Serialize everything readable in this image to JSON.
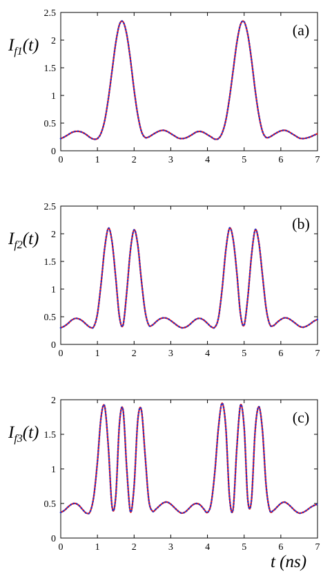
{
  "chart_data": [
    {
      "type": "line",
      "y_label": {
        "main": "I",
        "sub": "f1",
        "rest": "(t)"
      },
      "annotation": "(a)",
      "x": [
        0,
        0.1,
        0.2,
        0.3,
        0.4,
        0.5,
        0.6,
        0.7,
        0.8,
        0.9,
        1,
        1.1,
        1.2,
        1.3,
        1.4,
        1.5,
        1.6,
        1.7,
        1.8,
        1.9,
        2,
        2.1,
        2.2,
        2.3,
        2.4,
        2.5,
        2.6,
        2.7,
        2.8,
        2.9,
        3,
        3.1,
        3.2,
        3.3,
        3.4,
        3.5,
        3.6,
        3.7,
        3.8,
        3.9,
        4,
        4.1,
        4.2,
        4.3,
        4.4,
        4.5,
        4.6,
        4.7,
        4.8,
        4.9,
        5,
        5.1,
        5.2,
        5.3,
        5.4,
        5.5,
        5.6,
        5.7,
        5.8,
        5.9,
        6,
        6.1,
        6.2,
        6.3,
        6.4,
        6.5,
        6.6,
        6.7,
        6.8,
        6.9,
        7
      ],
      "xlim": [
        0,
        7
      ],
      "xticks": [
        0,
        1,
        2,
        3,
        4,
        5,
        6,
        7
      ],
      "ylim": [
        0,
        2.5
      ],
      "yticks": [
        0,
        0.5,
        1,
        1.5,
        2,
        2.5
      ],
      "series": [
        {
          "color": "#e4141b",
          "style": "solid",
          "values": [
            0.22,
            0.25,
            0.29,
            0.33,
            0.35,
            0.35,
            0.33,
            0.29,
            0.24,
            0.21,
            0.22,
            0.32,
            0.55,
            0.95,
            1.45,
            1.95,
            2.28,
            2.33,
            2.1,
            1.65,
            1.1,
            0.65,
            0.35,
            0.24,
            0.25,
            0.29,
            0.33,
            0.36,
            0.37,
            0.35,
            0.31,
            0.27,
            0.23,
            0.22,
            0.23,
            0.26,
            0.3,
            0.34,
            0.35,
            0.33,
            0.29,
            0.25,
            0.21,
            0.22,
            0.32,
            0.55,
            0.95,
            1.45,
            1.95,
            2.28,
            2.33,
            2.1,
            1.65,
            1.1,
            0.65,
            0.35,
            0.24,
            0.25,
            0.29,
            0.33,
            0.36,
            0.37,
            0.35,
            0.31,
            0.27,
            0.23,
            0.22,
            0.23,
            0.25,
            0.28,
            0.31
          ]
        },
        {
          "color": "#2233cc",
          "style": "dotted",
          "values": [
            0.22,
            0.25,
            0.29,
            0.33,
            0.35,
            0.35,
            0.33,
            0.29,
            0.24,
            0.21,
            0.22,
            0.32,
            0.55,
            0.95,
            1.45,
            1.95,
            2.28,
            2.33,
            2.1,
            1.65,
            1.1,
            0.65,
            0.35,
            0.24,
            0.25,
            0.29,
            0.33,
            0.36,
            0.37,
            0.35,
            0.31,
            0.27,
            0.23,
            0.22,
            0.23,
            0.26,
            0.3,
            0.34,
            0.35,
            0.33,
            0.29,
            0.25,
            0.21,
            0.22,
            0.32,
            0.55,
            0.95,
            1.45,
            1.95,
            2.28,
            2.33,
            2.1,
            1.65,
            1.1,
            0.65,
            0.35,
            0.24,
            0.25,
            0.29,
            0.33,
            0.36,
            0.37,
            0.35,
            0.31,
            0.27,
            0.23,
            0.22,
            0.23,
            0.25,
            0.28,
            0.31
          ]
        }
      ]
    },
    {
      "type": "line",
      "y_label": {
        "main": "I",
        "sub": "f2",
        "rest": "(t)"
      },
      "annotation": "(b)",
      "x": [
        0,
        0.1,
        0.2,
        0.3,
        0.4,
        0.5,
        0.6,
        0.7,
        0.8,
        0.9,
        1,
        1.1,
        1.2,
        1.3,
        1.4,
        1.5,
        1.6,
        1.7,
        1.8,
        1.9,
        2,
        2.1,
        2.2,
        2.3,
        2.4,
        2.5,
        2.6,
        2.7,
        2.8,
        2.9,
        3,
        3.1,
        3.2,
        3.3,
        3.4,
        3.5,
        3.6,
        3.7,
        3.8,
        3.9,
        4,
        4.1,
        4.2,
        4.3,
        4.4,
        4.5,
        4.6,
        4.7,
        4.8,
        4.9,
        5,
        5.1,
        5.2,
        5.3,
        5.4,
        5.5,
        5.6,
        5.7,
        5.8,
        5.9,
        6,
        6.1,
        6.2,
        6.3,
        6.4,
        6.5,
        6.6,
        6.7,
        6.8,
        6.9,
        7
      ],
      "xlim": [
        0,
        7
      ],
      "xticks": [
        0,
        1,
        2,
        3,
        4,
        5,
        6,
        7
      ],
      "ylim": [
        0,
        2.5
      ],
      "yticks": [
        0,
        0.5,
        1,
        1.5,
        2,
        2.5
      ],
      "series": [
        {
          "color": "#e4141b",
          "style": "solid",
          "values": [
            0.3,
            0.33,
            0.38,
            0.44,
            0.47,
            0.46,
            0.42,
            0.36,
            0.31,
            0.32,
            0.55,
            1.1,
            1.75,
            2.1,
            1.85,
            1.2,
            0.5,
            0.35,
            0.95,
            1.7,
            2.07,
            1.8,
            1.15,
            0.6,
            0.35,
            0.35,
            0.41,
            0.46,
            0.48,
            0.47,
            0.43,
            0.38,
            0.33,
            0.3,
            0.31,
            0.35,
            0.41,
            0.46,
            0.47,
            0.44,
            0.38,
            0.32,
            0.31,
            0.48,
            1.0,
            1.7,
            2.1,
            1.9,
            1.3,
            0.55,
            0.35,
            0.85,
            1.6,
            2.07,
            1.85,
            1.25,
            0.65,
            0.36,
            0.34,
            0.4,
            0.45,
            0.48,
            0.47,
            0.43,
            0.38,
            0.33,
            0.31,
            0.33,
            0.37,
            0.42,
            0.45
          ]
        },
        {
          "color": "#2233cc",
          "style": "dotted",
          "values": [
            0.3,
            0.33,
            0.38,
            0.44,
            0.47,
            0.46,
            0.42,
            0.36,
            0.31,
            0.32,
            0.55,
            1.1,
            1.75,
            2.1,
            1.85,
            1.2,
            0.5,
            0.35,
            0.95,
            1.7,
            2.07,
            1.8,
            1.15,
            0.6,
            0.35,
            0.35,
            0.41,
            0.46,
            0.48,
            0.47,
            0.43,
            0.38,
            0.33,
            0.3,
            0.31,
            0.35,
            0.41,
            0.46,
            0.47,
            0.44,
            0.38,
            0.32,
            0.31,
            0.48,
            1.0,
            1.7,
            2.1,
            1.9,
            1.3,
            0.55,
            0.35,
            0.85,
            1.6,
            2.07,
            1.85,
            1.25,
            0.65,
            0.36,
            0.34,
            0.4,
            0.45,
            0.48,
            0.47,
            0.43,
            0.38,
            0.33,
            0.31,
            0.33,
            0.37,
            0.42,
            0.45
          ]
        }
      ]
    },
    {
      "type": "line",
      "y_label": {
        "main": "I",
        "sub": "f3",
        "rest": "(t)"
      },
      "annotation": "(c)",
      "x_label": "t (ns)",
      "x": [
        0,
        0.1,
        0.2,
        0.3,
        0.4,
        0.5,
        0.6,
        0.7,
        0.8,
        0.9,
        1,
        1.1,
        1.2,
        1.3,
        1.4,
        1.5,
        1.6,
        1.7,
        1.8,
        1.9,
        2,
        2.1,
        2.2,
        2.3,
        2.4,
        2.5,
        2.6,
        2.7,
        2.8,
        2.9,
        3,
        3.1,
        3.2,
        3.3,
        3.4,
        3.5,
        3.6,
        3.7,
        3.8,
        3.9,
        4,
        4.1,
        4.2,
        4.3,
        4.4,
        4.5,
        4.6,
        4.7,
        4.8,
        4.9,
        5,
        5.1,
        5.2,
        5.3,
        5.4,
        5.5,
        5.6,
        5.7,
        5.8,
        5.9,
        6,
        6.1,
        6.2,
        6.3,
        6.4,
        6.5,
        6.6,
        6.7,
        6.8,
        6.9,
        7
      ],
      "xlim": [
        0,
        7
      ],
      "xticks": [
        0,
        1,
        2,
        3,
        4,
        5,
        6,
        7
      ],
      "ylim": [
        0,
        2
      ],
      "yticks": [
        0,
        0.5,
        1,
        1.5,
        2
      ],
      "series": [
        {
          "color": "#e4141b",
          "style": "solid",
          "values": [
            0.37,
            0.4,
            0.45,
            0.49,
            0.5,
            0.47,
            0.41,
            0.36,
            0.38,
            0.6,
            1.1,
            1.75,
            1.9,
            1.3,
            0.45,
            0.6,
            1.65,
            1.85,
            1.0,
            0.38,
            0.75,
            1.7,
            1.85,
            1.2,
            0.55,
            0.39,
            0.42,
            0.47,
            0.51,
            0.52,
            0.49,
            0.44,
            0.39,
            0.36,
            0.38,
            0.43,
            0.48,
            0.5,
            0.48,
            0.42,
            0.37,
            0.5,
            0.95,
            1.6,
            1.95,
            1.6,
            0.6,
            0.42,
            1.3,
            1.92,
            1.6,
            0.55,
            0.55,
            1.55,
            1.9,
            1.55,
            0.75,
            0.4,
            0.4,
            0.45,
            0.5,
            0.52,
            0.49,
            0.44,
            0.39,
            0.36,
            0.37,
            0.4,
            0.44,
            0.47,
            0.49
          ]
        },
        {
          "color": "#2233cc",
          "style": "dotted",
          "values": [
            0.37,
            0.4,
            0.45,
            0.49,
            0.5,
            0.47,
            0.41,
            0.36,
            0.38,
            0.6,
            1.1,
            1.75,
            1.9,
            1.3,
            0.45,
            0.6,
            1.65,
            1.85,
            1.0,
            0.38,
            0.75,
            1.7,
            1.85,
            1.2,
            0.55,
            0.39,
            0.42,
            0.47,
            0.51,
            0.52,
            0.49,
            0.44,
            0.39,
            0.36,
            0.38,
            0.43,
            0.48,
            0.5,
            0.48,
            0.42,
            0.37,
            0.5,
            0.95,
            1.6,
            1.95,
            1.6,
            0.6,
            0.42,
            1.3,
            1.92,
            1.6,
            0.55,
            0.55,
            1.55,
            1.9,
            1.55,
            0.75,
            0.4,
            0.4,
            0.45,
            0.5,
            0.52,
            0.49,
            0.44,
            0.39,
            0.36,
            0.37,
            0.4,
            0.44,
            0.47,
            0.49
          ]
        }
      ]
    }
  ]
}
